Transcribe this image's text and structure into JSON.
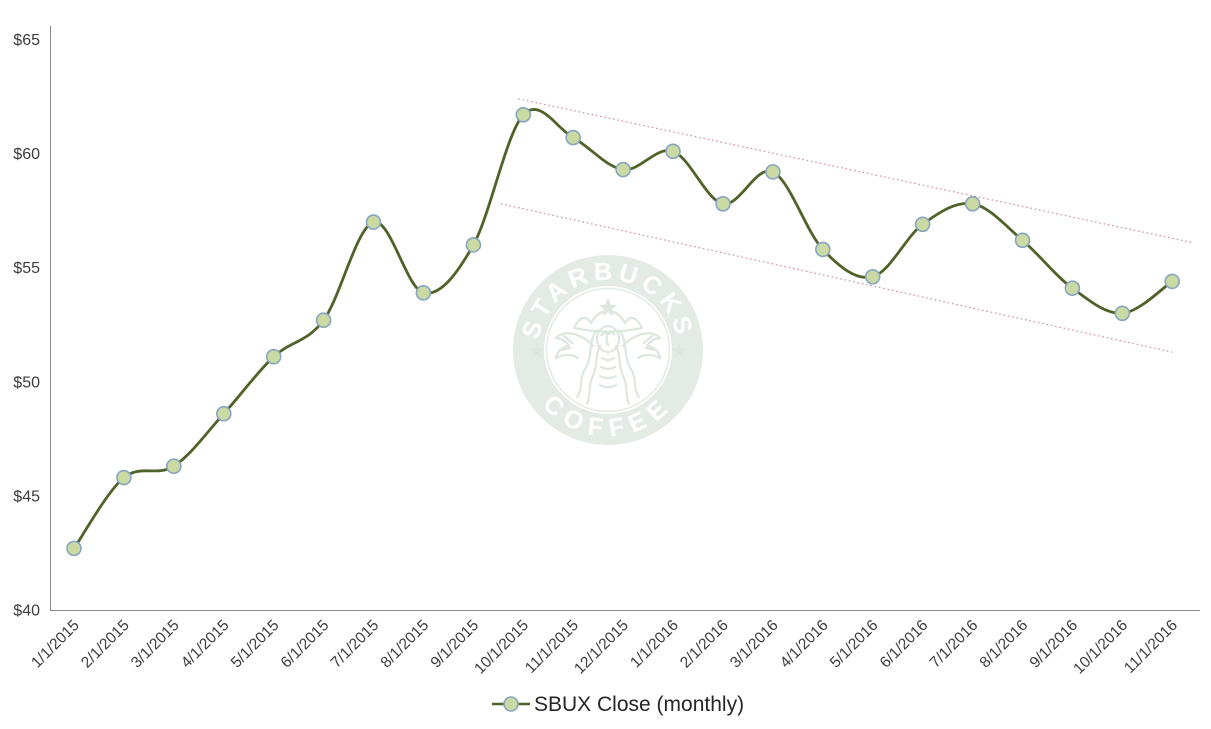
{
  "chart_data": {
    "type": "line",
    "title": "",
    "xlabel": "",
    "ylabel": "",
    "categories": [
      "1/1/2015",
      "2/1/2015",
      "3/1/2015",
      "4/1/2015",
      "5/1/2015",
      "6/1/2015",
      "7/1/2015",
      "8/1/2015",
      "9/1/2015",
      "10/1/2015",
      "11/1/2015",
      "12/1/2015",
      "1/1/2016",
      "2/1/2016",
      "3/1/2016",
      "4/1/2016",
      "5/1/2016",
      "6/1/2016",
      "7/1/2016",
      "8/1/2016",
      "9/1/2016",
      "10/1/2016",
      "11/1/2016"
    ],
    "series": [
      {
        "name": "SBUX Close (monthly)",
        "values": [
          42.7,
          45.8,
          46.3,
          48.6,
          51.1,
          52.7,
          57.0,
          53.9,
          56.0,
          61.7,
          60.7,
          59.3,
          60.1,
          57.8,
          59.2,
          55.8,
          54.6,
          56.9,
          57.8,
          56.2,
          54.1,
          53.0,
          54.4
        ],
        "color": "#4f6228",
        "marker_fill": "#cbdaa2",
        "marker_stroke": "#87a5c2",
        "smooth": true
      }
    ],
    "ylim": [
      40,
      65
    ],
    "ytick_step": 5,
    "ytick_labels": [
      "$40",
      "$45",
      "$50",
      "$55",
      "$60",
      "$65"
    ],
    "grid": false,
    "legend": {
      "label": "SBUX Close (monthly)",
      "position": "bottom-center"
    },
    "trend_channel": {
      "style": "dotted",
      "color": "#d994a2",
      "lines": [
        {
          "name": "upper",
          "from": {
            "x": 8.9,
            "value": 62.4
          },
          "to": {
            "x": 22.4,
            "value": 56.1
          }
        },
        {
          "name": "lower",
          "from": {
            "x": 8.55,
            "value": 57.8
          },
          "to": {
            "x": 22.0,
            "value": 51.3
          }
        }
      ]
    }
  },
  "watermark": {
    "arc_top": "STARBUCKS",
    "arc_bottom": "COFFEE",
    "star": "★",
    "band_color": "#e3ebe4",
    "art_color": "#dde7de",
    "text_color": "#ffffff"
  },
  "axis": {
    "color": "#8a8a8a",
    "label_color": "#3c3c3c"
  }
}
